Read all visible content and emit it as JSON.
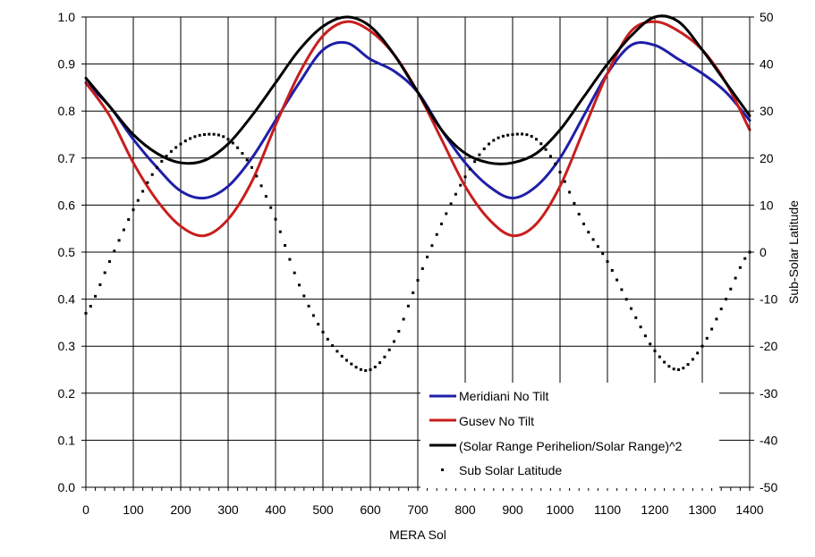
{
  "chart_data": {
    "type": "line",
    "xlabel": "MERA Sol",
    "ylabel": "",
    "y2label": "Sub-Solar Latitude",
    "xlim": [
      0,
      1400
    ],
    "ylim": [
      0.0,
      1.0
    ],
    "y2lim": [
      -50,
      50
    ],
    "grid": true,
    "legend_position": "bottom-right",
    "x_ticks": [
      "0",
      "100",
      "200",
      "300",
      "400",
      "500",
      "600",
      "700",
      "800",
      "900",
      "1000",
      "1100",
      "1200",
      "1300",
      "1400"
    ],
    "y_ticks": [
      "0.0",
      "0.1",
      "0.2",
      "0.3",
      "0.4",
      "0.5",
      "0.6",
      "0.7",
      "0.8",
      "0.9",
      "1.0"
    ],
    "y2_ticks": [
      "-50",
      "-40",
      "-30",
      "-20",
      "-10",
      "0",
      "10",
      "20",
      "30",
      "40",
      "50"
    ],
    "x": [
      0,
      50,
      100,
      150,
      200,
      250,
      300,
      350,
      400,
      450,
      500,
      550,
      600,
      650,
      700,
      750,
      800,
      850,
      900,
      950,
      1000,
      1050,
      1100,
      1150,
      1200,
      1250,
      1300,
      1350,
      1400
    ],
    "series": [
      {
        "name": "Meridiani No Tilt",
        "color": "#1f1fa8",
        "axis": "left",
        "style": "line",
        "values": [
          0.86,
          0.81,
          0.74,
          0.68,
          0.63,
          0.615,
          0.64,
          0.7,
          0.78,
          0.86,
          0.93,
          0.945,
          0.91,
          0.885,
          0.84,
          0.76,
          0.69,
          0.64,
          0.615,
          0.64,
          0.7,
          0.79,
          0.88,
          0.94,
          0.94,
          0.91,
          0.88,
          0.84,
          0.78
        ]
      },
      {
        "name": "Gusev No Tilt",
        "color": "#c81e1e",
        "axis": "left",
        "style": "line",
        "values": [
          0.86,
          0.79,
          0.69,
          0.61,
          0.555,
          0.535,
          0.57,
          0.65,
          0.77,
          0.88,
          0.96,
          0.99,
          0.97,
          0.92,
          0.84,
          0.74,
          0.64,
          0.57,
          0.535,
          0.56,
          0.64,
          0.76,
          0.88,
          0.97,
          0.99,
          0.97,
          0.93,
          0.86,
          0.76
        ]
      },
      {
        "name": "(Solar Range Perihelion/Solar Range)^2",
        "color": "#000000",
        "axis": "left",
        "style": "line",
        "values": [
          0.87,
          0.81,
          0.75,
          0.71,
          0.69,
          0.695,
          0.73,
          0.79,
          0.86,
          0.93,
          0.98,
          1.0,
          0.98,
          0.92,
          0.84,
          0.76,
          0.71,
          0.69,
          0.69,
          0.71,
          0.76,
          0.83,
          0.9,
          0.96,
          1.0,
          0.99,
          0.93,
          0.86,
          0.79
        ]
      },
      {
        "name": "Sub Solar Latitude",
        "color": "#000000",
        "axis": "right",
        "style": "dots",
        "values": [
          -13,
          -2,
          9,
          18,
          23,
          25,
          24,
          18,
          7,
          -7,
          -17,
          -23,
          -25,
          -19,
          -6,
          6,
          16,
          23,
          25,
          24,
          17,
          6,
          -2,
          -12,
          -21,
          -25,
          -20,
          -10,
          0
        ]
      }
    ]
  }
}
